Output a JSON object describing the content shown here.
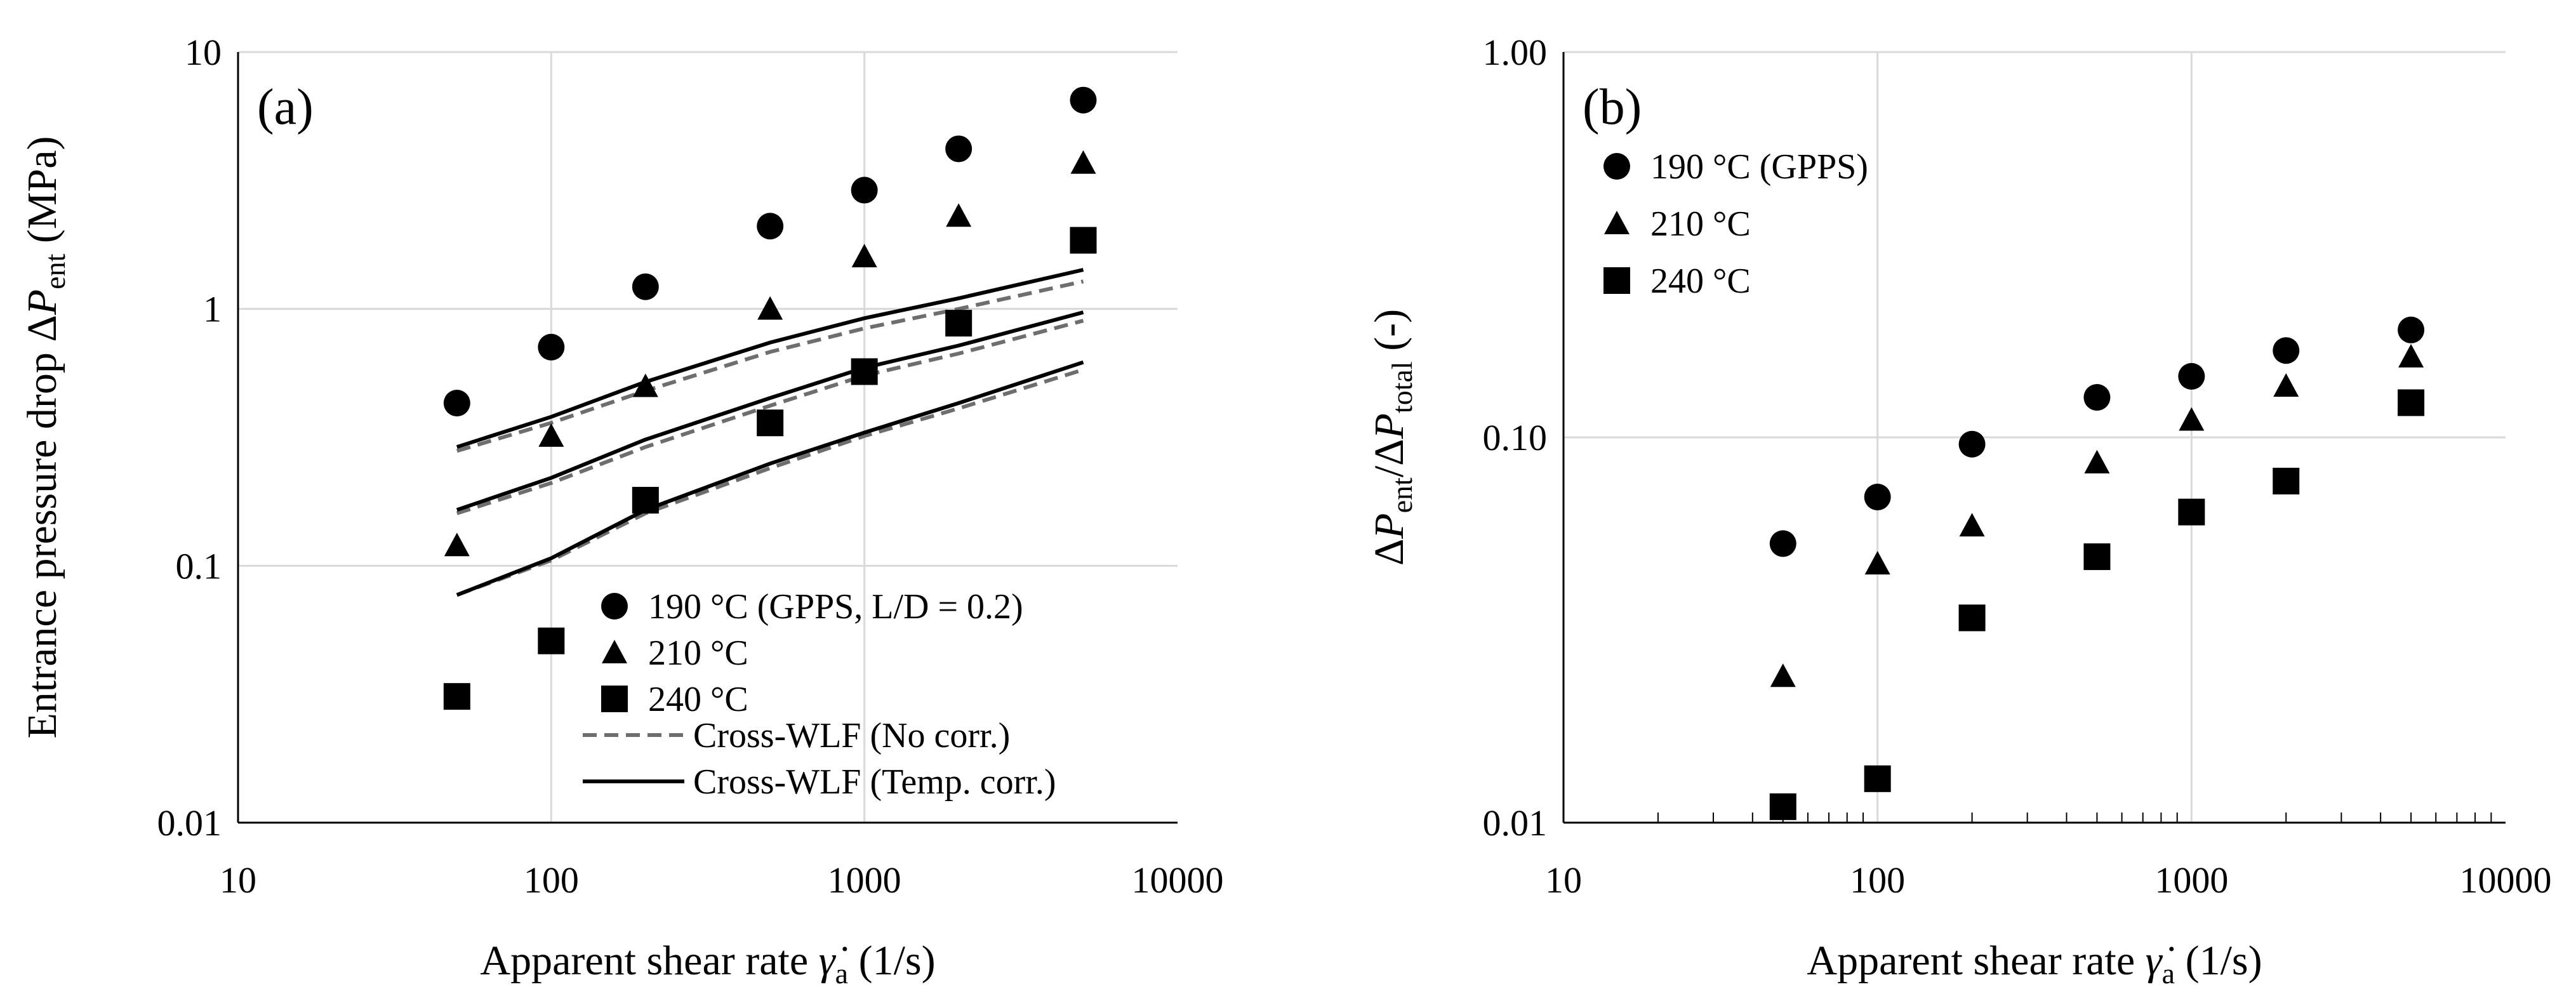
{
  "chart_data": [
    {
      "type": "scatter",
      "panel_label": "(a)",
      "x_scale": "log",
      "y_scale": "log",
      "xlim": [
        10,
        10000
      ],
      "ylim": [
        0.01,
        10
      ],
      "xlabel": {
        "prefix": "Apparent shear rate ",
        "symbol": "γ̇",
        "sub": "a",
        "suffix": " (1/s)"
      },
      "ylabel": {
        "prefix": "Entrance pressure drop Δ",
        "symbol": "P",
        "sub": "ent",
        "suffix": " (MPa)"
      },
      "x_tick_labels": [
        "10",
        "100",
        "1000",
        "10000"
      ],
      "y_tick_labels": [
        "0.01",
        "0.1",
        "1",
        "10"
      ],
      "series": [
        {
          "name": "190 °C (GPPS, L/D = 0.2)",
          "marker": "circle",
          "x": [
            50,
            100,
            200,
            500,
            1000,
            2000,
            5000
          ],
          "y": [
            0.43,
            0.71,
            1.22,
            2.1,
            2.9,
            4.2,
            6.5
          ]
        },
        {
          "name": "210 °C",
          "marker": "triangle",
          "x": [
            50,
            100,
            200,
            500,
            1000,
            2000,
            5000
          ],
          "y": [
            0.12,
            0.32,
            0.5,
            1.0,
            1.6,
            2.3,
            3.7
          ]
        },
        {
          "name": "240 °C",
          "marker": "square",
          "x": [
            50,
            100,
            200,
            500,
            1000,
            2000,
            5000
          ],
          "y": [
            0.031,
            0.051,
            0.18,
            0.36,
            0.57,
            0.88,
            1.85
          ]
        }
      ],
      "lines": [
        {
          "name": "Cross-WLF (No corr.)",
          "style": "dashed",
          "curves": [
            {
              "x": [
                50,
                100,
                200,
                500,
                1000,
                2000,
                5000
              ],
              "y": [
                0.28,
                0.36,
                0.48,
                0.68,
                0.84,
                1.0,
                1.28
              ]
            },
            {
              "x": [
                50,
                100,
                200,
                500,
                1000,
                2000,
                5000
              ],
              "y": [
                0.16,
                0.21,
                0.29,
                0.42,
                0.55,
                0.67,
                0.9
              ]
            },
            {
              "x": [
                50,
                100,
                200,
                500,
                1000,
                2000,
                5000
              ],
              "y": [
                0.077,
                0.105,
                0.16,
                0.24,
                0.32,
                0.41,
                0.58
              ]
            }
          ]
        },
        {
          "name": "Cross-WLF (Temp. corr.)",
          "style": "solid",
          "curves": [
            {
              "x": [
                50,
                100,
                200,
                500,
                1000,
                2000,
                5000
              ],
              "y": [
                0.29,
                0.38,
                0.52,
                0.74,
                0.92,
                1.1,
                1.42
              ]
            },
            {
              "x": [
                50,
                100,
                200,
                500,
                1000,
                2000,
                5000
              ],
              "y": [
                0.165,
                0.22,
                0.31,
                0.45,
                0.59,
                0.72,
                0.97
              ]
            },
            {
              "x": [
                50,
                100,
                200,
                500,
                1000,
                2000,
                5000
              ],
              "y": [
                0.077,
                0.107,
                0.165,
                0.25,
                0.33,
                0.43,
                0.62
              ]
            }
          ]
        }
      ],
      "legend_position": "bottom-right"
    },
    {
      "type": "scatter",
      "panel_label": "(b)",
      "x_scale": "log",
      "y_scale": "log",
      "xlim": [
        10,
        10000
      ],
      "ylim": [
        0.01,
        1
      ],
      "xlabel": {
        "prefix": "Apparent shear rate ",
        "symbol": "γ̇",
        "sub": "a",
        "suffix": " (1/s)"
      },
      "ylabel": {
        "prefix": "Δ",
        "symbol": "P",
        "sub": "ent",
        "mid": "/Δ",
        "symbol2": "P",
        "sub2": "total",
        "suffix": " (-)"
      },
      "x_tick_labels": [
        "10",
        "100",
        "1000",
        "10000"
      ],
      "y_tick_labels": [
        "0.01",
        "0.10",
        "1.00"
      ],
      "series": [
        {
          "name": "190 °C (GPPS)",
          "marker": "circle",
          "x": [
            50,
            100,
            200,
            500,
            1000,
            2000,
            5000
          ],
          "y": [
            0.053,
            0.07,
            0.096,
            0.127,
            0.144,
            0.168,
            0.19
          ]
        },
        {
          "name": "210 °C",
          "marker": "triangle",
          "x": [
            50,
            100,
            200,
            500,
            1000,
            2000,
            5000
          ],
          "y": [
            0.024,
            0.047,
            0.059,
            0.086,
            0.111,
            0.136,
            0.162
          ]
        },
        {
          "name": "240 °C",
          "marker": "square",
          "x": [
            50,
            100,
            200,
            500,
            1000,
            2000,
            5000
          ],
          "y": [
            0.011,
            0.013,
            0.034,
            0.049,
            0.064,
            0.077,
            0.123
          ]
        }
      ],
      "legend_position": "top-left"
    }
  ]
}
